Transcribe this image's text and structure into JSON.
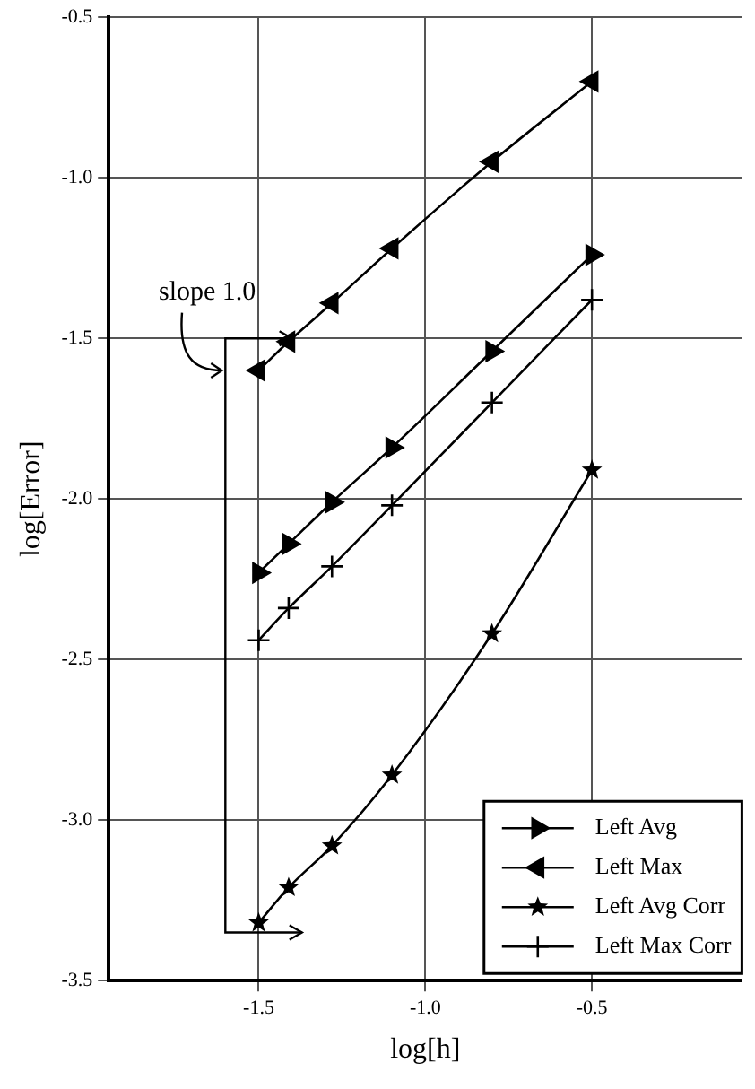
{
  "chart_data": {
    "type": "line",
    "xlabel": "log[h]",
    "ylabel": "log[Error]",
    "x": [
      -1.5,
      -1.41,
      -1.28,
      -1.1,
      -0.8,
      -0.5
    ],
    "series": [
      {
        "name": "Left Avg",
        "color": "#000000",
        "marker": "triangle",
        "values": [
          -2.23,
          -2.14,
          -2.01,
          -1.84,
          -1.54,
          -1.24
        ]
      },
      {
        "name": "Left Max",
        "color": "#000000",
        "marker": "triangle",
        "values": [
          -1.6,
          -1.51,
          -1.39,
          -1.22,
          -0.95,
          -0.7
        ]
      },
      {
        "name": "Left Avg Corr",
        "color": "#000000",
        "marker": "star",
        "values": [
          -3.32,
          -3.21,
          -3.08,
          -2.86,
          -2.42,
          -1.91
        ]
      },
      {
        "name": "Left Max Corr",
        "color": "#000000",
        "marker": "cross",
        "values": [
          -2.44,
          -2.34,
          -2.21,
          -2.02,
          -1.7,
          -1.38
        ]
      }
    ],
    "xlim": [
      -1.95,
      -0.05
    ],
    "xticks": [
      -1.5,
      {
        "value": -1,
        "label": "-1.0"
      },
      -0.5
    ],
    "ylim": [
      -3.5,
      -0.5
    ],
    "yticks": [
      -3.5,
      {
        "value": -3,
        "label": "-3.0"
      },
      -2.5,
      {
        "value": -2,
        "label": "-2.0"
      },
      -1.5,
      {
        "value": -1,
        "label": "-1.0"
      },
      -0.5
    ],
    "grid": true,
    "legend": "bottom right",
    "line_style": "solid",
    "annotations": [
      "slope 1.0"
    ]
  }
}
